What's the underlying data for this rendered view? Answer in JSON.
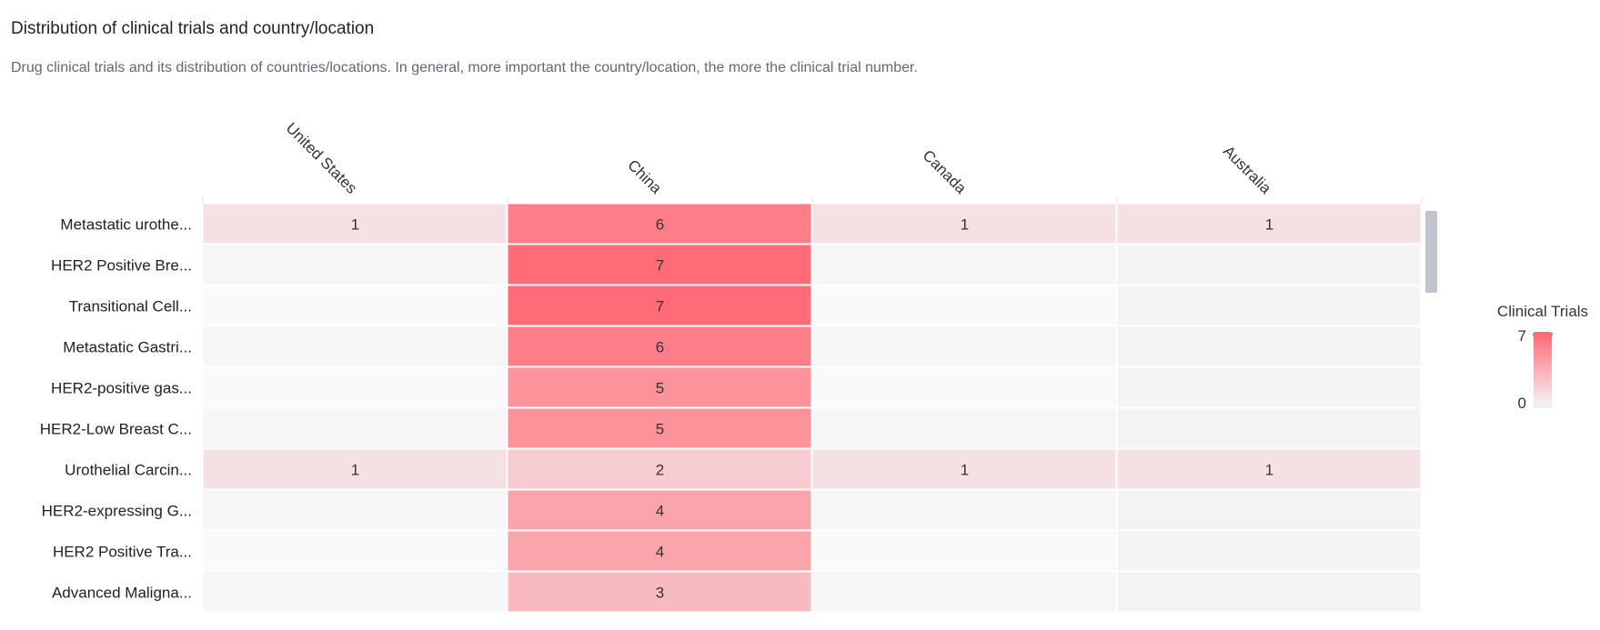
{
  "header": {
    "title": "Distribution of clinical trials and country/location",
    "subtitle": "Drug clinical trials and its distribution of countries/locations. In general, more important the country/location, the more the clinical trial number."
  },
  "chart_data": {
    "type": "heatmap",
    "x": [
      "United States",
      "China",
      "Canada",
      "Australia"
    ],
    "y": [
      "Metastatic urothe...",
      "HER2 Positive Bre...",
      "Transitional Cell...",
      "Metastatic Gastri...",
      "HER2-positive gas...",
      "HER2-Low Breast C...",
      "Urothelial Carcin...",
      "HER2-expressing G...",
      "HER2 Positive Tra...",
      "Advanced Maligna..."
    ],
    "values": [
      [
        1,
        6,
        1,
        1
      ],
      [
        null,
        7,
        null,
        null
      ],
      [
        null,
        7,
        null,
        null
      ],
      [
        null,
        6,
        null,
        null
      ],
      [
        null,
        5,
        null,
        null
      ],
      [
        null,
        5,
        null,
        null
      ],
      [
        1,
        2,
        1,
        1
      ],
      [
        null,
        4,
        null,
        null
      ],
      [
        null,
        4,
        null,
        null
      ],
      [
        null,
        3,
        null,
        null
      ]
    ],
    "legend": {
      "title": "Clinical Trials",
      "min": 0,
      "max": 7,
      "placement": "right"
    },
    "colors": {
      "high": "#ff6b76",
      "low": "#f3f3f5",
      "empty_light": "#fafafa",
      "empty_dark": "#f5f5f7",
      "scrollbar": "#c0c4cc"
    }
  }
}
